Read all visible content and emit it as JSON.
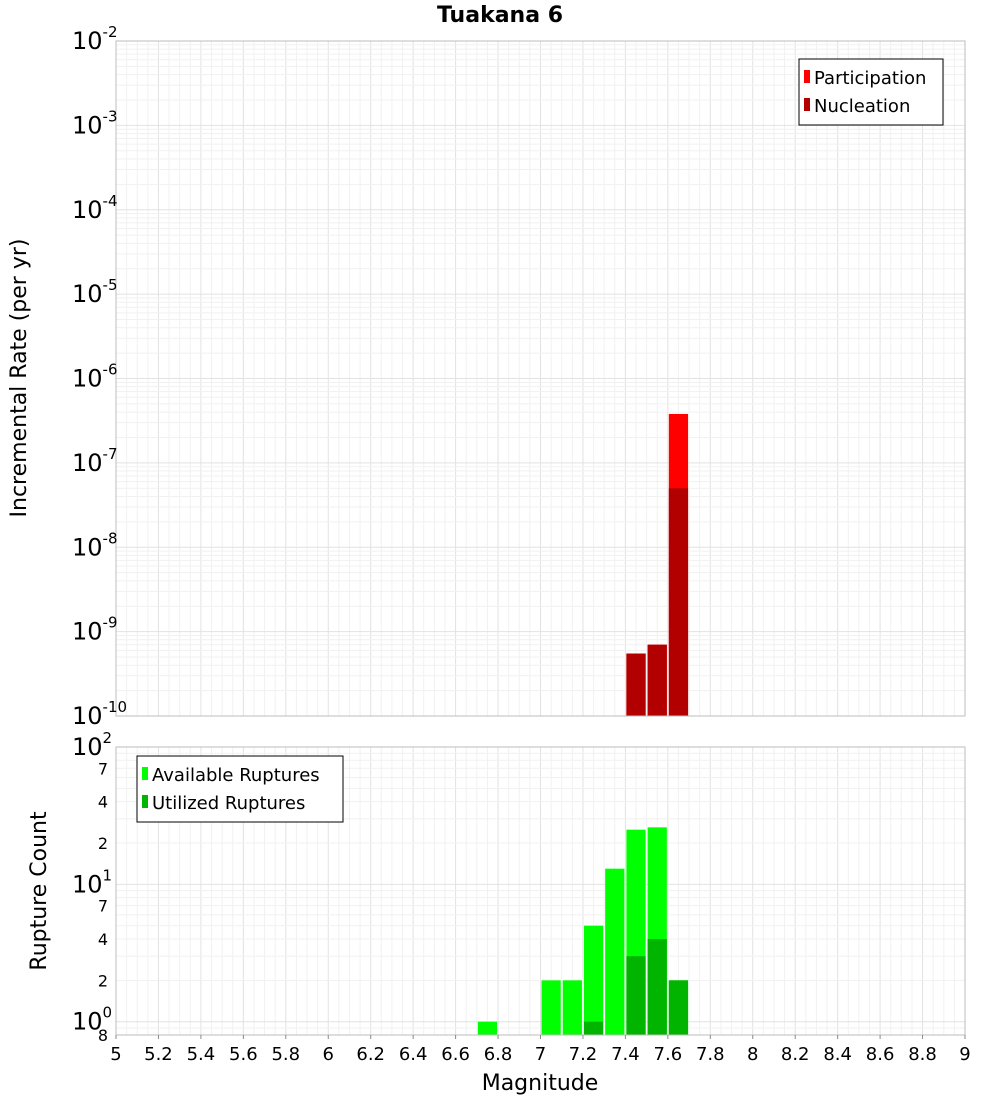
{
  "chart_data": [
    {
      "type": "bar",
      "title": "Tuakana 6",
      "xlabel": "Magnitude",
      "ylabel": "Incremental Rate (per yr)",
      "y_scale": "log",
      "ylim": [
        1e-10,
        0.01
      ],
      "xlim": [
        5,
        9
      ],
      "grid": true,
      "legend_position": "top-right",
      "y_major_ticks": [
        {
          "base": "10",
          "exp": "-10",
          "value": 1e-10
        },
        {
          "base": "10",
          "exp": "-9",
          "value": 1e-09
        },
        {
          "base": "10",
          "exp": "-8",
          "value": 1e-08
        },
        {
          "base": "10",
          "exp": "-7",
          "value": 1e-07
        },
        {
          "base": "10",
          "exp": "-6",
          "value": 1e-06
        },
        {
          "base": "10",
          "exp": "-5",
          "value": 1e-05
        },
        {
          "base": "10",
          "exp": "-4",
          "value": 0.0001
        },
        {
          "base": "10",
          "exp": "-3",
          "value": 0.001
        },
        {
          "base": "10",
          "exp": "-2",
          "value": 0.01
        }
      ],
      "bin_width": 0.1,
      "series": [
        {
          "name": "Participation",
          "color": "#ff0000",
          "x": [
            7.45,
            7.55,
            7.65
          ],
          "values": [
            5.5e-10,
            7e-10,
            3.8e-07
          ]
        },
        {
          "name": "Nucleation",
          "color": "#b20000",
          "x": [
            7.45,
            7.55,
            7.65
          ],
          "values": [
            5.5e-10,
            7e-10,
            5e-08
          ]
        }
      ]
    },
    {
      "type": "bar",
      "title": "",
      "xlabel": "Magnitude",
      "ylabel": "Rupture Count",
      "y_scale": "log",
      "ylim": [
        0.8,
        100
      ],
      "xlim": [
        5,
        9
      ],
      "grid": true,
      "legend_position": "top-left",
      "y_major_ticks": [
        {
          "base": "10",
          "exp": "0",
          "value": 1
        },
        {
          "base": "10",
          "exp": "1",
          "value": 10
        },
        {
          "base": "10",
          "exp": "2",
          "value": 100
        }
      ],
      "y_minor_tick_labels": [
        {
          "label": "8",
          "value": 0.8
        },
        {
          "label": "2",
          "value": 2
        },
        {
          "label": "4",
          "value": 4
        },
        {
          "label": "7",
          "value": 7
        },
        {
          "label": "2",
          "value": 20
        },
        {
          "label": "4",
          "value": 40
        },
        {
          "label": "7",
          "value": 70
        }
      ],
      "bin_width": 0.1,
      "series": [
        {
          "name": "Available Ruptures",
          "color": "#00ff00",
          "x": [
            6.75,
            7.05,
            7.15,
            7.25,
            7.35,
            7.45,
            7.55,
            7.65
          ],
          "values": [
            1,
            2,
            2,
            5,
            13,
            25,
            26,
            2
          ]
        },
        {
          "name": "Utilized Ruptures",
          "color": "#00b400",
          "x": [
            7.25,
            7.45,
            7.55,
            7.65
          ],
          "values": [
            1,
            3,
            4,
            2
          ]
        }
      ]
    }
  ],
  "x_tick_labels": [
    "5",
    "5.2",
    "5.4",
    "5.6",
    "5.8",
    "6",
    "6.2",
    "6.4",
    "6.6",
    "6.8",
    "7",
    "7.2",
    "7.4",
    "7.6",
    "7.8",
    "8",
    "8.2",
    "8.4",
    "8.6",
    "8.8",
    "9"
  ]
}
